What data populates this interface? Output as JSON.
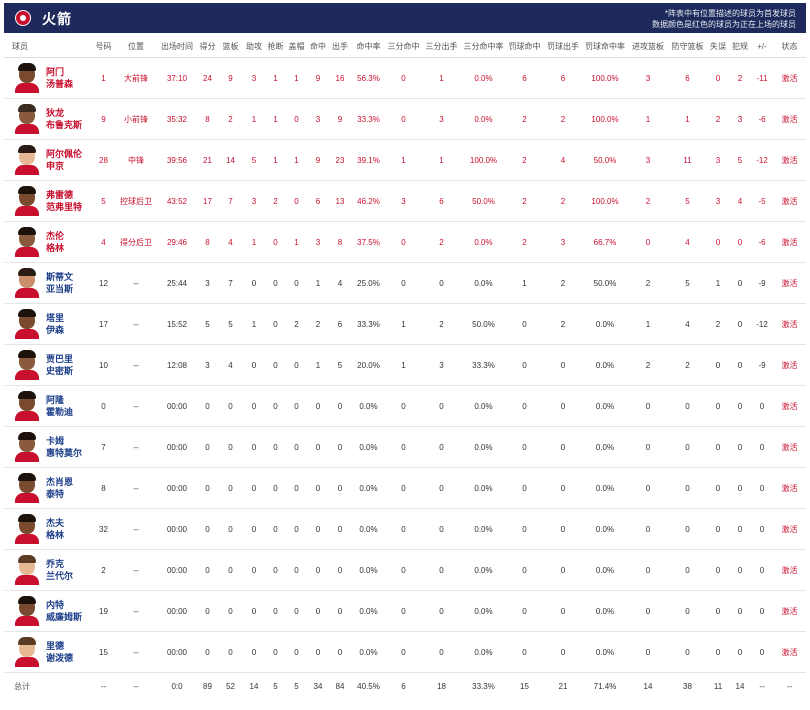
{
  "header": {
    "team_name": "火箭",
    "note_line1": "*阵表中有位置描述的球员为首发球员",
    "note_line2": "数据颜色是红色的球员为正在上场的球员"
  },
  "columns": [
    "球员",
    "号码",
    "位置",
    "出场时间",
    "得分",
    "篮板",
    "助攻",
    "抢断",
    "盖帽",
    "命中",
    "出手",
    "命中率",
    "三分命中",
    "三分出手",
    "三分命中率",
    "罚球命中",
    "罚球出手",
    "罚球命中率",
    "进攻篮板",
    "防守篮板",
    "失误",
    "犯规",
    "+/-",
    "状态"
  ],
  "players": [
    {
      "name1": "阿门",
      "name2": "汤普森",
      "number": "1",
      "position": "大前锋",
      "min": "37:10",
      "pts": "24",
      "reb": "9",
      "ast": "3",
      "stl": "1",
      "blk": "1",
      "fgm": "9",
      "fga": "16",
      "fgp": "56.3%",
      "tpm": "0",
      "tpa": "1",
      "tpp": "0.0%",
      "ftm": "6",
      "fta": "6",
      "ftp": "100.0%",
      "oreb": "3",
      "dreb": "6",
      "tov": "0",
      "pf": "2",
      "pm": "-11",
      "status": "激活",
      "starter": true,
      "skin": "#7a4a2e",
      "hair": "#1c110b"
    },
    {
      "name1": "狄龙",
      "name2": "布鲁克斯",
      "number": "9",
      "position": "小前锋",
      "min": "35:32",
      "pts": "8",
      "reb": "2",
      "ast": "1",
      "stl": "1",
      "blk": "0",
      "fgm": "3",
      "fga": "9",
      "fgp": "33.3%",
      "tpm": "0",
      "tpa": "3",
      "tpp": "0.0%",
      "ftm": "2",
      "fta": "2",
      "ftp": "100.0%",
      "oreb": "1",
      "dreb": "1",
      "tov": "2",
      "pf": "3",
      "pm": "-6",
      "status": "激活",
      "starter": true,
      "skin": "#8a5a3c",
      "hair": "#3a2a20"
    },
    {
      "name1": "阿尔佩伦",
      "name2": "申京",
      "number": "28",
      "position": "中锋",
      "min": "39:56",
      "pts": "21",
      "reb": "14",
      "ast": "5",
      "stl": "1",
      "blk": "1",
      "fgm": "9",
      "fga": "23",
      "fgp": "39.1%",
      "tpm": "1",
      "tpa": "1",
      "tpp": "100.0%",
      "ftm": "2",
      "fta": "4",
      "ftp": "50.0%",
      "oreb": "3",
      "dreb": "11",
      "tov": "3",
      "pf": "5",
      "pm": "-12",
      "status": "激活",
      "starter": true,
      "skin": "#e6b894",
      "hair": "#2a1c14"
    },
    {
      "name1": "弗雷德",
      "name2": "范弗里特",
      "number": "5",
      "position": "控球后卫",
      "min": "43:52",
      "pts": "17",
      "reb": "7",
      "ast": "3",
      "stl": "2",
      "blk": "0",
      "fgm": "6",
      "fga": "13",
      "fgp": "46.2%",
      "tpm": "3",
      "tpa": "6",
      "tpp": "50.0%",
      "ftm": "2",
      "fta": "2",
      "ftp": "100.0%",
      "oreb": "2",
      "dreb": "5",
      "tov": "3",
      "pf": "4",
      "pm": "-5",
      "status": "激活",
      "starter": true,
      "skin": "#7a4a2e",
      "hair": "#1c110b"
    },
    {
      "name1": "杰伦",
      "name2": "格林",
      "number": "4",
      "position": "得分后卫",
      "min": "29:46",
      "pts": "8",
      "reb": "4",
      "ast": "1",
      "stl": "0",
      "blk": "1",
      "fgm": "3",
      "fga": "8",
      "fgp": "37.5%",
      "tpm": "0",
      "tpa": "2",
      "tpp": "0.0%",
      "ftm": "2",
      "fta": "3",
      "ftp": "66.7%",
      "oreb": "0",
      "dreb": "4",
      "tov": "0",
      "pf": "0",
      "pm": "-6",
      "status": "激活",
      "starter": true,
      "skin": "#8a5a3c",
      "hair": "#1c110b"
    },
    {
      "name1": "斯蒂文",
      "name2": "亚当斯",
      "number": "12",
      "position": "--",
      "min": "25:44",
      "pts": "3",
      "reb": "7",
      "ast": "0",
      "stl": "0",
      "blk": "0",
      "fgm": "1",
      "fga": "4",
      "fgp": "25.0%",
      "tpm": "0",
      "tpa": "0",
      "tpp": "0.0%",
      "ftm": "1",
      "fta": "2",
      "ftp": "50.0%",
      "oreb": "2",
      "dreb": "5",
      "tov": "1",
      "pf": "0",
      "pm": "-9",
      "status": "激活",
      "starter": false,
      "skin": "#c98f6a",
      "hair": "#2a1c14"
    },
    {
      "name1": "塔里",
      "name2": "伊森",
      "number": "17",
      "position": "--",
      "min": "15:52",
      "pts": "5",
      "reb": "5",
      "ast": "1",
      "stl": "0",
      "blk": "2",
      "fgm": "2",
      "fga": "6",
      "fgp": "33.3%",
      "tpm": "1",
      "tpa": "2",
      "tpp": "50.0%",
      "ftm": "0",
      "fta": "2",
      "ftp": "0.0%",
      "oreb": "1",
      "dreb": "4",
      "tov": "2",
      "pf": "0",
      "pm": "-12",
      "status": "激活",
      "starter": false,
      "skin": "#7a4a2e",
      "hair": "#1c110b"
    },
    {
      "name1": "贾巴里",
      "name2": "史密斯",
      "number": "10",
      "position": "--",
      "min": "12:08",
      "pts": "3",
      "reb": "4",
      "ast": "0",
      "stl": "0",
      "blk": "0",
      "fgm": "1",
      "fga": "5",
      "fgp": "20.0%",
      "tpm": "1",
      "tpa": "3",
      "tpp": "33.3%",
      "ftm": "0",
      "fta": "0",
      "ftp": "0.0%",
      "oreb": "2",
      "dreb": "2",
      "tov": "0",
      "pf": "0",
      "pm": "-9",
      "status": "激活",
      "starter": false,
      "skin": "#8a5a3c",
      "hair": "#1c110b"
    },
    {
      "name1": "阿隆",
      "name2": "霍勒迪",
      "number": "0",
      "position": "--",
      "min": "00:00",
      "pts": "0",
      "reb": "0",
      "ast": "0",
      "stl": "0",
      "blk": "0",
      "fgm": "0",
      "fga": "0",
      "fgp": "0.0%",
      "tpm": "0",
      "tpa": "0",
      "tpp": "0.0%",
      "ftm": "0",
      "fta": "0",
      "ftp": "0.0%",
      "oreb": "0",
      "dreb": "0",
      "tov": "0",
      "pf": "0",
      "pm": "0",
      "status": "激活",
      "starter": false,
      "skin": "#7a4a2e",
      "hair": "#1c110b"
    },
    {
      "name1": "卡姆",
      "name2": "惠特莫尔",
      "number": "7",
      "position": "--",
      "min": "00:00",
      "pts": "0",
      "reb": "0",
      "ast": "0",
      "stl": "0",
      "blk": "0",
      "fgm": "0",
      "fga": "0",
      "fgp": "0.0%",
      "tpm": "0",
      "tpa": "0",
      "tpp": "0.0%",
      "ftm": "0",
      "fta": "0",
      "ftp": "0.0%",
      "oreb": "0",
      "dreb": "0",
      "tov": "0",
      "pf": "0",
      "pm": "0",
      "status": "激活",
      "starter": false,
      "skin": "#8a5a3c",
      "hair": "#1c110b"
    },
    {
      "name1": "杰肖恩",
      "name2": "泰特",
      "number": "8",
      "position": "--",
      "min": "00:00",
      "pts": "0",
      "reb": "0",
      "ast": "0",
      "stl": "0",
      "blk": "0",
      "fgm": "0",
      "fga": "0",
      "fgp": "0.0%",
      "tpm": "0",
      "tpa": "0",
      "tpp": "0.0%",
      "ftm": "0",
      "fta": "0",
      "ftp": "0.0%",
      "oreb": "0",
      "dreb": "0",
      "tov": "0",
      "pf": "0",
      "pm": "0",
      "status": "激活",
      "starter": false,
      "skin": "#7a4a2e",
      "hair": "#1c110b"
    },
    {
      "name1": "杰夫",
      "name2": "格林",
      "number": "32",
      "position": "--",
      "min": "00:00",
      "pts": "0",
      "reb": "0",
      "ast": "0",
      "stl": "0",
      "blk": "0",
      "fgm": "0",
      "fga": "0",
      "fgp": "0.0%",
      "tpm": "0",
      "tpa": "0",
      "tpp": "0.0%",
      "ftm": "0",
      "fta": "0",
      "ftp": "0.0%",
      "oreb": "0",
      "dreb": "0",
      "tov": "0",
      "pf": "0",
      "pm": "0",
      "status": "激活",
      "starter": false,
      "skin": "#7a4a2e",
      "hair": "#1c110b"
    },
    {
      "name1": "乔克",
      "name2": "兰代尔",
      "number": "2",
      "position": "--",
      "min": "00:00",
      "pts": "0",
      "reb": "0",
      "ast": "0",
      "stl": "0",
      "blk": "0",
      "fgm": "0",
      "fga": "0",
      "fgp": "0.0%",
      "tpm": "0",
      "tpa": "0",
      "tpp": "0.0%",
      "ftm": "0",
      "fta": "0",
      "ftp": "0.0%",
      "oreb": "0",
      "dreb": "0",
      "tov": "0",
      "pf": "0",
      "pm": "0",
      "status": "激活",
      "starter": false,
      "skin": "#e6b894",
      "hair": "#5a3a22"
    },
    {
      "name1": "内特",
      "name2": "威廉姆斯",
      "number": "19",
      "position": "--",
      "min": "00:00",
      "pts": "0",
      "reb": "0",
      "ast": "0",
      "stl": "0",
      "blk": "0",
      "fgm": "0",
      "fga": "0",
      "fgp": "0.0%",
      "tpm": "0",
      "tpa": "0",
      "tpp": "0.0%",
      "ftm": "0",
      "fta": "0",
      "ftp": "0.0%",
      "oreb": "0",
      "dreb": "0",
      "tov": "0",
      "pf": "0",
      "pm": "0",
      "status": "激活",
      "starter": false,
      "skin": "#7a4a2e",
      "hair": "#1c110b"
    },
    {
      "name1": "里德",
      "name2": "谢泼德",
      "number": "15",
      "position": "--",
      "min": "00:00",
      "pts": "0",
      "reb": "0",
      "ast": "0",
      "stl": "0",
      "blk": "0",
      "fgm": "0",
      "fga": "0",
      "fgp": "0.0%",
      "tpm": "0",
      "tpa": "0",
      "tpp": "0.0%",
      "ftm": "0",
      "fta": "0",
      "ftp": "0.0%",
      "oreb": "0",
      "dreb": "0",
      "tov": "0",
      "pf": "0",
      "pm": "0",
      "status": "激活",
      "starter": false,
      "skin": "#e6b894",
      "hair": "#5a3a22"
    }
  ],
  "totals": {
    "label": "总计",
    "number": "--",
    "position": "--",
    "min": "0:0",
    "pts": "89",
    "reb": "52",
    "ast": "14",
    "stl": "5",
    "blk": "5",
    "fgm": "34",
    "fga": "84",
    "fgp": "40.5%",
    "tpm": "6",
    "tpa": "18",
    "tpp": "33.3%",
    "ftm": "15",
    "fta": "21",
    "ftp": "71.4%",
    "oreb": "14",
    "dreb": "38",
    "tov": "11",
    "pf": "14",
    "pm": "--",
    "status": "--"
  }
}
